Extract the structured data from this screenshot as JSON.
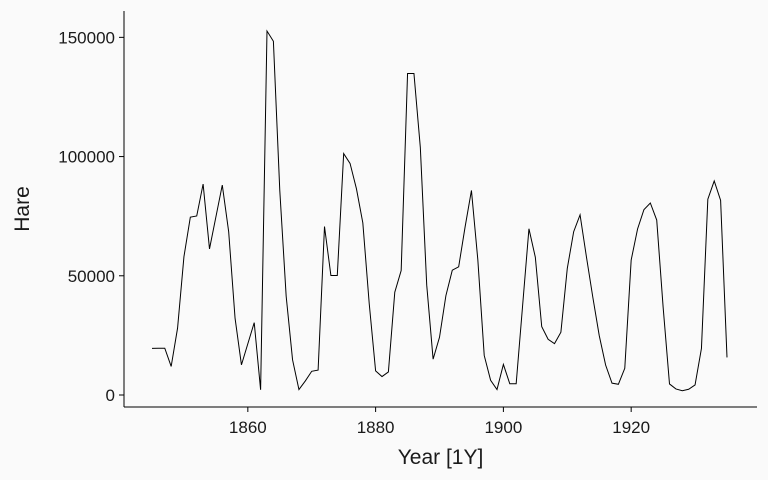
{
  "chart_data": {
    "type": "line",
    "xlabel": "Year [1Y]",
    "ylabel": "Hare",
    "xlim": [
      1845,
      1935
    ],
    "ylim": [
      0,
      153000
    ],
    "x_ticks": [
      1860,
      1880,
      1900,
      1920
    ],
    "x_tick_labels": [
      "1860",
      "1880",
      "1900",
      "1920"
    ],
    "y_ticks": [
      0,
      50000,
      100000,
      150000
    ],
    "y_tick_labels": [
      "0",
      "50000",
      "100000",
      "150000"
    ],
    "grid": false,
    "line_color": "#000000",
    "x": [
      1845,
      1846,
      1847,
      1848,
      1849,
      1850,
      1851,
      1852,
      1853,
      1854,
      1855,
      1856,
      1857,
      1858,
      1859,
      1860,
      1861,
      1862,
      1863,
      1864,
      1865,
      1866,
      1867,
      1868,
      1869,
      1870,
      1871,
      1872,
      1873,
      1874,
      1875,
      1876,
      1877,
      1878,
      1879,
      1880,
      1881,
      1882,
      1883,
      1884,
      1885,
      1886,
      1887,
      1888,
      1889,
      1890,
      1891,
      1892,
      1893,
      1894,
      1895,
      1896,
      1897,
      1898,
      1899,
      1900,
      1901,
      1902,
      1903,
      1904,
      1905,
      1906,
      1907,
      1908,
      1909,
      1910,
      1911,
      1912,
      1913,
      1914,
      1915,
      1916,
      1917,
      1918,
      1919,
      1920,
      1921,
      1922,
      1923,
      1924,
      1925,
      1926,
      1927,
      1928,
      1929,
      1930,
      1931,
      1932,
      1933,
      1934,
      1935
    ],
    "values": [
      19580,
      19600,
      19610,
      11990,
      28040,
      58000,
      74600,
      75090,
      88480,
      61280,
      74670,
      88060,
      68510,
      32190,
      12640,
      21490,
      30350,
      2180,
      152650,
      148360,
      85810,
      41410,
      14750,
      2280,
      5910,
      9950,
      10440,
      70640,
      50120,
      50130,
      101250,
      97120,
      86510,
      72170,
      38320,
      10110,
      7740,
      9670,
      43120,
      52210,
      134850,
      134860,
      103790,
      46100,
      15030,
      24200,
      41650,
      52340,
      53780,
      70400,
      85810,
      56690,
      16590,
      6160,
      2300,
      12820,
      4720,
      4730,
      37220,
      69720,
      57780,
      28680,
      23370,
      21540,
      26340,
      53100,
      68480,
      75580,
      57920,
      40970,
      24950,
      12590,
      4970,
      4500,
      11210,
      56600,
      69630,
      77740,
      80530,
      73380,
      36930,
      4640,
      2540,
      1800,
      2390,
      4230,
      19520,
      82110,
      89760,
      81660,
      15760
    ]
  }
}
